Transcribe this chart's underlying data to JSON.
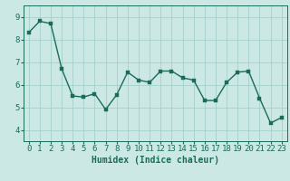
{
  "x": [
    0,
    1,
    2,
    3,
    4,
    5,
    6,
    7,
    8,
    9,
    10,
    11,
    12,
    13,
    14,
    15,
    16,
    17,
    18,
    19,
    20,
    21,
    22,
    23
  ],
  "y": [
    8.3,
    8.8,
    8.7,
    6.7,
    5.5,
    5.45,
    5.6,
    4.9,
    5.55,
    6.55,
    6.2,
    6.1,
    6.6,
    6.6,
    6.3,
    6.2,
    5.3,
    5.3,
    6.1,
    6.55,
    6.6,
    5.4,
    4.3,
    4.55
  ],
  "line_color": "#1a6b5a",
  "marker_color": "#1a6b5a",
  "bg_color": "#cce8e5",
  "grid_color": "#9eccc8",
  "xlabel": "Humidex (Indice chaleur)",
  "xlim": [
    -0.5,
    23.5
  ],
  "ylim": [
    3.5,
    9.5
  ],
  "yticks": [
    4,
    5,
    6,
    7,
    8,
    9
  ],
  "xticks": [
    0,
    1,
    2,
    3,
    4,
    5,
    6,
    7,
    8,
    9,
    10,
    11,
    12,
    13,
    14,
    15,
    16,
    17,
    18,
    19,
    20,
    21,
    22,
    23
  ],
  "marker_size": 2.5,
  "line_width": 1.0,
  "xlabel_fontsize": 7,
  "tick_fontsize": 6.5
}
